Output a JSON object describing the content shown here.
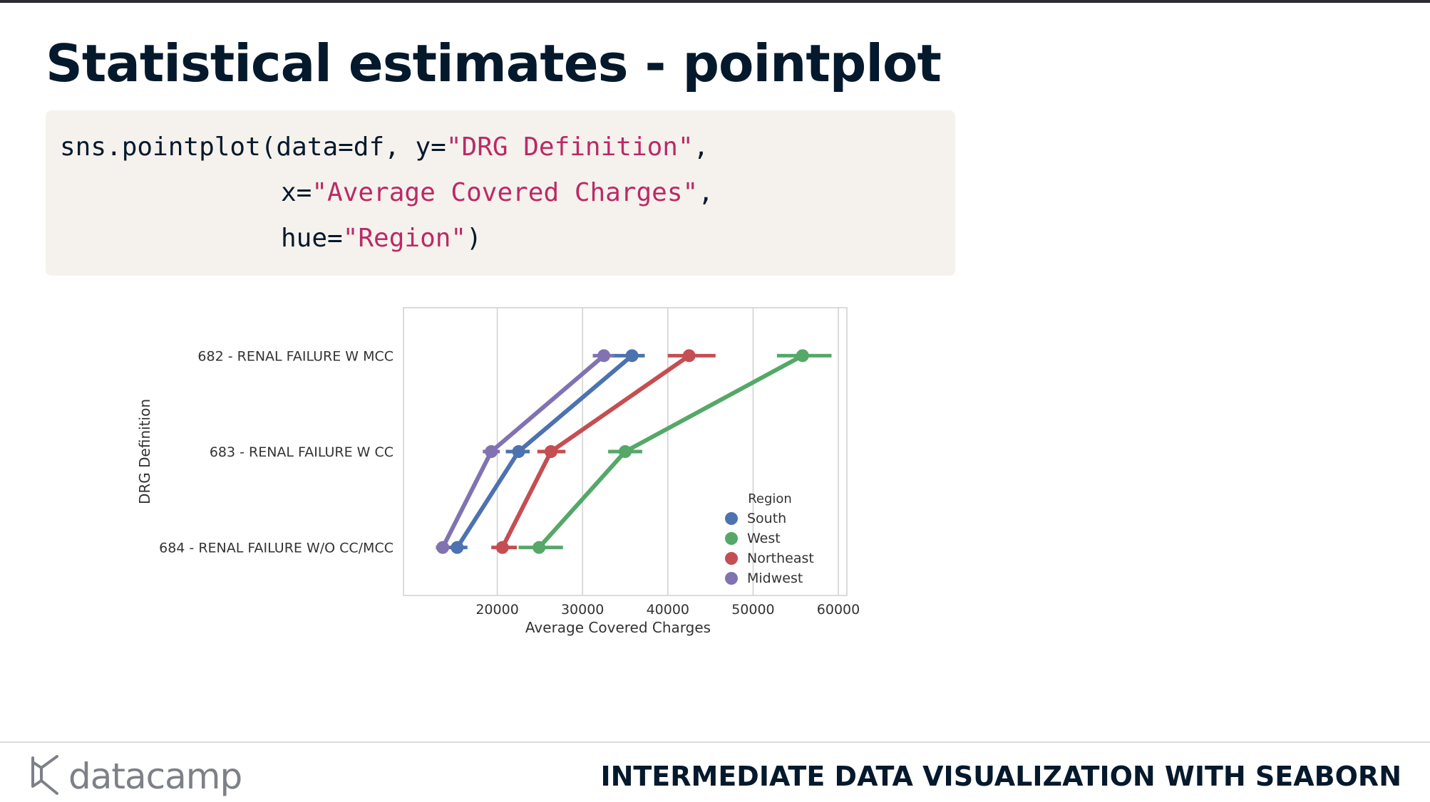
{
  "slide": {
    "title": "Statistical estimates - pointplot",
    "course": "INTERMEDIATE DATA VISUALIZATION WITH SEABORN",
    "brand": "datacamp"
  },
  "code": {
    "l1_a": "sns.pointplot(data=df, y=",
    "l1_s": "\"DRG Definition\"",
    "l1_b": ",",
    "l2_a": "x=",
    "l2_s": "\"Average Covered Charges\"",
    "l2_b": ",",
    "l3_a": "hue=",
    "l3_s": "\"Region\"",
    "l3_b": ")"
  },
  "chart_data": {
    "type": "pointplot",
    "xlabel": "Average Covered Charges",
    "ylabel": "DRG Definition",
    "xlim": [
      9000,
      61000
    ],
    "xticks": [
      20000,
      30000,
      40000,
      50000,
      60000
    ],
    "categories": [
      "682 - RENAL FAILURE W MCC",
      "683 - RENAL FAILURE W CC",
      "684 - RENAL FAILURE W/O CC/MCC"
    ],
    "legend_title": "Region",
    "legend_position": "lower-right",
    "grid": "x",
    "series": [
      {
        "name": "South",
        "color": "#4c72b0",
        "values": [
          35800,
          22500,
          15300
        ],
        "ci_low": [
          33500,
          21000,
          14200
        ],
        "ci_high": [
          37300,
          23800,
          16500
        ]
      },
      {
        "name": "West",
        "color": "#55a868",
        "values": [
          55800,
          35000,
          24900
        ],
        "ci_low": [
          52800,
          33000,
          22500
        ],
        "ci_high": [
          59200,
          37000,
          27700
        ]
      },
      {
        "name": "Northeast",
        "color": "#c44e52",
        "values": [
          42500,
          26300,
          20600
        ],
        "ci_low": [
          40000,
          24700,
          19300
        ],
        "ci_high": [
          45600,
          28000,
          22300
        ]
      },
      {
        "name": "Midwest",
        "color": "#8172b2",
        "values": [
          32500,
          19300,
          13600
        ],
        "ci_low": [
          31200,
          18300,
          12800
        ],
        "ci_high": [
          33700,
          20300,
          14400
        ]
      }
    ]
  }
}
